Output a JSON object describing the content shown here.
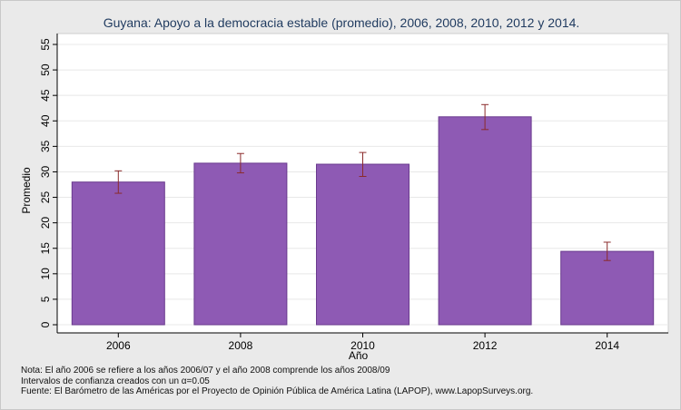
{
  "chart_data": {
    "type": "bar",
    "title": "Guyana: Apoyo a la democracia estable (promedio), 2006, 2008, 2010, 2012 y 2014.",
    "xlabel": "Año",
    "ylabel": "Promedio",
    "categories": [
      "2006",
      "2008",
      "2010",
      "2012",
      "2014"
    ],
    "values": [
      28.0,
      31.7,
      31.5,
      40.8,
      14.4
    ],
    "error_low": [
      25.8,
      29.8,
      29.1,
      38.3,
      12.6
    ],
    "error_high": [
      30.2,
      33.6,
      33.8,
      43.2,
      16.2
    ],
    "ylim": [
      0,
      55
    ],
    "yticks": [
      0,
      5,
      10,
      15,
      20,
      25,
      30,
      35,
      40,
      45,
      50,
      55
    ],
    "grid": true,
    "colors": {
      "bar": "#8e5ab4",
      "bar_edge": "#6a3a8e",
      "error": "#8b2b2b",
      "plot_bg": "#ffffff",
      "grid": "#e8e8e8"
    }
  },
  "notes": {
    "line1": "Nota: El año 2006 se refiere a los años 2006/07 y el año 2008 comprende los años 2008/09",
    "line2": "Intervalos de confianza creados con un α=0.05",
    "line3": "Fuente: El Barómetro de las Américas por el Proyecto de Opinión Pública de América Latina (LAPOP), www.LapopSurveys.org."
  }
}
